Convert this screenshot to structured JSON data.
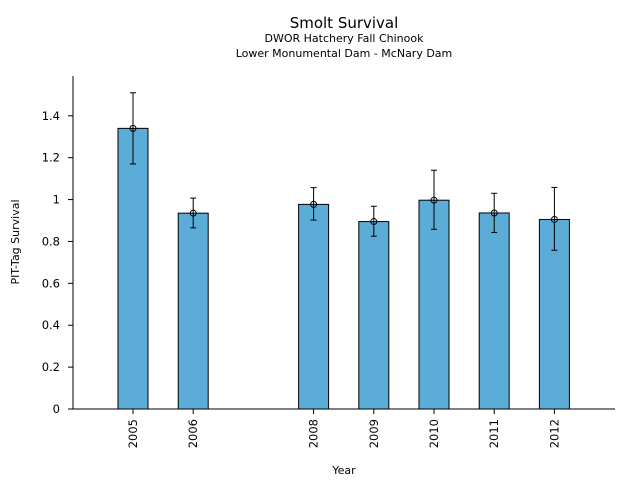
{
  "chart_data": {
    "type": "bar",
    "title": "Smolt Survival",
    "subtitle_lines": [
      "DWOR Hatchery Fall Chinook",
      "Lower Monumental Dam - McNary Dam"
    ],
    "xlabel": "Year",
    "ylabel": "PIT-Tag Survival",
    "x": [
      2005,
      2006,
      2008,
      2009,
      2010,
      2011,
      2012
    ],
    "categories": [
      "2005",
      "2006",
      "2008",
      "2009",
      "2010",
      "2011",
      "2012"
    ],
    "values": [
      1.34,
      0.935,
      0.977,
      0.895,
      0.997,
      0.936,
      0.905
    ],
    "error_low": [
      1.17,
      0.865,
      0.902,
      0.825,
      0.858,
      0.843,
      0.758
    ],
    "error_high": [
      1.51,
      1.007,
      1.057,
      0.968,
      1.14,
      1.03,
      1.058
    ],
    "ylim": [
      0,
      1.59
    ],
    "yticks": [
      0,
      0.2,
      0.4,
      0.6,
      0.8,
      1,
      1.2,
      1.4
    ],
    "ytick_labels": [
      "0",
      "0.2",
      "0.4",
      "0.6",
      "0.8",
      "1",
      "1.2",
      "1.4"
    ],
    "bar_color": "#5bacd6",
    "edge_color": "#000000",
    "grid": false,
    "legend": "none"
  }
}
